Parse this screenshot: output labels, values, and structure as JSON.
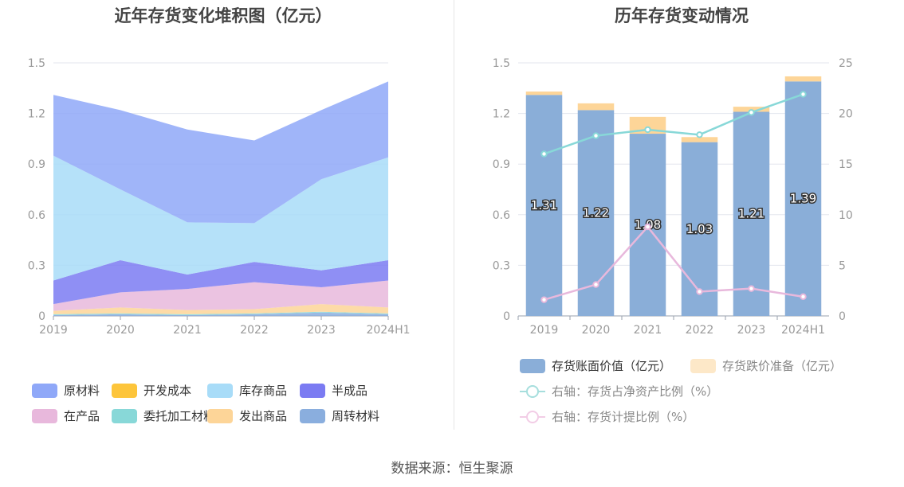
{
  "left": {
    "title": "近年存货变化堆积图（亿元）",
    "legend": [
      {
        "label": "原材料",
        "color": "#8fa8f8"
      },
      {
        "label": "开发成本",
        "color": "#fdc53b"
      },
      {
        "label": "库存商品",
        "color": "#a8dcf8"
      },
      {
        "label": "半成品",
        "color": "#7b7bf2"
      },
      {
        "label": "在产品",
        "color": "#e8b8dc"
      },
      {
        "label": "委托加工材料",
        "color": "#88d8d8"
      },
      {
        "label": "发出商品",
        "color": "#fdd598"
      },
      {
        "label": "周转材料",
        "color": "#8aaede"
      }
    ]
  },
  "right": {
    "title": "历年存货变动情况",
    "legend": [
      {
        "label": "存货账面价值（亿元）",
        "color": "#8aaed8",
        "kind": "bar"
      },
      {
        "label": "存货跌价准备（亿元）",
        "color": "#fde8c8",
        "kind": "bar",
        "muted": true
      },
      {
        "label": "右轴：存货占净资产比例（%）",
        "color": "#a6dedd",
        "kind": "line",
        "muted": true
      },
      {
        "label": "右轴：存货计提比例（%）",
        "color": "#f2cde6",
        "kind": "line",
        "muted": true
      }
    ]
  },
  "footer": "数据来源：恒生聚源",
  "chart_data": [
    {
      "type": "area",
      "title": "近年存货变化堆积图（亿元）",
      "stacked": true,
      "categories": [
        "2019",
        "2020",
        "2021",
        "2022",
        "2023",
        "2024H1"
      ],
      "ylim": [
        0,
        1.5
      ],
      "yticks": [
        "0",
        "0.3",
        "0.6",
        "0.9",
        "1.2",
        "1.5"
      ],
      "grid": true,
      "legend_position": "bottom",
      "series": [
        {
          "name": "周转材料",
          "color": "#8aaede",
          "values": [
            0.005,
            0.01,
            0.005,
            0.01,
            0.02,
            0.01
          ]
        },
        {
          "name": "开发成本",
          "color": "#fdc53b",
          "values": [
            0.0,
            0.0,
            0.0,
            0.0,
            0.0,
            0.0
          ]
        },
        {
          "name": "委托加工材料",
          "color": "#88d8d8",
          "values": [
            0.005,
            0.005,
            0.005,
            0.005,
            0.005,
            0.005
          ]
        },
        {
          "name": "发出商品",
          "color": "#fdd598",
          "values": [
            0.02,
            0.035,
            0.025,
            0.025,
            0.045,
            0.035
          ]
        },
        {
          "name": "在产品",
          "color": "#e8b8dc",
          "values": [
            0.04,
            0.09,
            0.125,
            0.16,
            0.1,
            0.16
          ]
        },
        {
          "name": "半成品",
          "color": "#7b7bf2",
          "values": [
            0.14,
            0.19,
            0.085,
            0.12,
            0.1,
            0.12
          ]
        },
        {
          "name": "库存商品",
          "color": "#a8dcf8",
          "values": [
            0.74,
            0.42,
            0.31,
            0.23,
            0.54,
            0.61
          ]
        },
        {
          "name": "原材料",
          "color": "#8fa8f8",
          "values": [
            0.36,
            0.47,
            0.55,
            0.49,
            0.41,
            0.45
          ]
        }
      ]
    },
    {
      "type": "bar",
      "title": "历年存货变动情况",
      "categories": [
        "2019",
        "2020",
        "2021",
        "2022",
        "2023",
        "2024H1"
      ],
      "ylim": [
        0,
        1.5
      ],
      "yticks": [
        "0",
        "0.3",
        "0.6",
        "0.9",
        "1.2",
        "1.5"
      ],
      "y2lim": [
        0,
        25
      ],
      "y2ticks": [
        "0",
        "5",
        "10",
        "15",
        "20",
        "25"
      ],
      "stacked": true,
      "grid": true,
      "legend_position": "bottom",
      "series": [
        {
          "name": "存货账面价值（亿元）",
          "type": "bar",
          "color": "#8aaed8",
          "values": [
            1.31,
            1.22,
            1.08,
            1.03,
            1.21,
            1.39
          ],
          "labels": [
            "1.31",
            "1.22",
            "1.08",
            "1.03",
            "1.21",
            "1.39"
          ]
        },
        {
          "name": "存货跌价准备（亿元）",
          "type": "bar",
          "color": "#fdd598",
          "values": [
            0.02,
            0.04,
            0.1,
            0.03,
            0.03,
            0.03
          ]
        },
        {
          "name": "右轴：存货占净资产比例（%）",
          "type": "line",
          "axis": "right",
          "color": "#88d8d8",
          "values": [
            16.0,
            17.8,
            18.4,
            17.9,
            20.1,
            21.9
          ]
        },
        {
          "name": "右轴：存货计提比例（%）",
          "type": "line",
          "axis": "right",
          "color": "#e8b8dc",
          "values": [
            1.6,
            3.1,
            8.8,
            2.4,
            2.7,
            1.9
          ]
        }
      ]
    }
  ]
}
